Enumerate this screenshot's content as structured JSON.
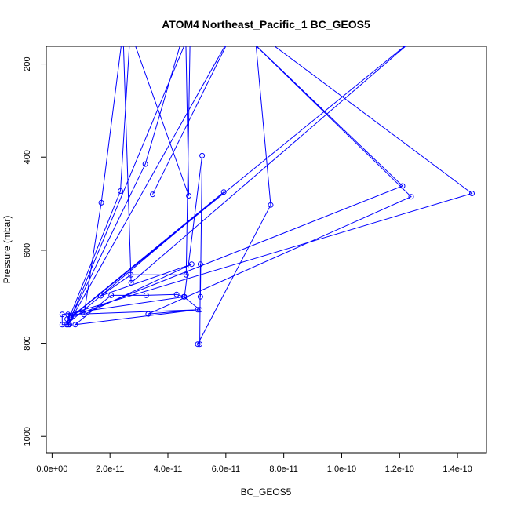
{
  "chart_data": {
    "type": "line",
    "title": "ATOM4 Northeast_Pacific_1 BC_GEOS5",
    "xlabel": "BC_GEOS5",
    "ylabel": "Pressure (mbar)",
    "xlim": [
      -2e-12,
      1.5e-10
    ],
    "ylim": [
      1035,
      162
    ],
    "y_reversed": true,
    "x_ticks": [
      0,
      2e-11,
      4e-11,
      6e-11,
      8e-11,
      1e-10,
      1.2e-10,
      1.4e-10
    ],
    "x_tick_labels": [
      "0.0e+00",
      "2.0e-11",
      "4.0e-11",
      "6.0e-11",
      "8.0e-11",
      "1.0e-10",
      "1.2e-10",
      "1.4e-10"
    ],
    "y_ticks": [
      200,
      400,
      600,
      800,
      1000
    ],
    "y_tick_labels": [
      "200",
      "400",
      "600",
      "800",
      "1000"
    ],
    "grid": false,
    "series_color": "#0000ff",
    "series": [
      {
        "points": [
          [
            3.47e-11,
            480
          ],
          [
            6.25e-11,
            130
          ],
          [
            5.5e-12,
            760
          ],
          [
            4.77e-11,
            130
          ],
          [
            4.63e-11,
            653
          ],
          [
            2.72e-11,
            653
          ],
          [
            1.68e-11,
            698
          ],
          [
            4.82e-11,
            630
          ],
          [
            1.1e-11,
            738
          ],
          [
            1.7e-11,
            498
          ],
          [
            2.45e-11,
            130
          ],
          [
            2.73e-11,
            670
          ],
          [
            1.28e-10,
            130
          ],
          [
            6.5e-12,
            745
          ],
          [
            3.22e-11,
            415
          ],
          [
            4.61e-11,
            120
          ],
          [
            4.72e-11,
            483
          ],
          [
            2.7e-11,
            130
          ],
          [
            2.36e-11,
            473
          ],
          [
            5e-12,
            760
          ],
          [
            5.93e-11,
            475
          ],
          [
            6.3e-12,
            745
          ],
          [
            1.21e-10,
            462
          ],
          [
            6.53e-11,
            130
          ],
          [
            1.24e-10,
            485
          ],
          [
            3.32e-11,
            737
          ],
          [
            5.03e-11,
            728
          ],
          [
            8e-12,
            760
          ],
          [
            2.04e-11,
            697
          ],
          [
            3.25e-11,
            697
          ],
          [
            4.3e-11,
            695
          ],
          [
            4.55e-11,
            700
          ],
          [
            5.1e-11,
            728
          ],
          [
            5.5e-12,
            738
          ],
          [
            1.45e-10,
            478
          ],
          [
            7e-11,
            130
          ],
          [
            7.55e-11,
            503
          ],
          [
            5.03e-11,
            802
          ],
          [
            5.1e-11,
            802
          ],
          [
            5.12e-11,
            630
          ],
          [
            5.12e-11,
            700
          ],
          [
            5.18e-11,
            397
          ],
          [
            4.57e-11,
            700
          ],
          [
            3.5e-12,
            738
          ],
          [
            3.5e-12,
            760
          ],
          [
            6e-12,
            760
          ],
          [
            5.2e-12,
            748
          ]
        ]
      }
    ]
  }
}
